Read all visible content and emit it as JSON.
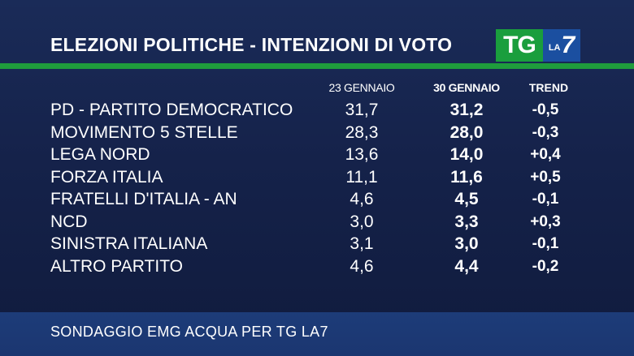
{
  "header": {
    "title": "ELEZIONI POLITICHE  -  INTENZIONI DI VOTO",
    "logo_tg": "TG",
    "logo_la": "LA",
    "logo_seven": "7"
  },
  "colors": {
    "background": "#15224a",
    "green_accent": "#1f9c3c",
    "footer_band": "#1d3c79",
    "logo_blue": "#1b4fa0"
  },
  "chart_data": {
    "type": "table",
    "columns": [
      "23 GENNAIO",
      "30 GENNAIO",
      "TREND"
    ],
    "rows": [
      {
        "party": "PD - PARTITO DEMOCRATICO",
        "v1": "31,7",
        "v2": "31,2",
        "trend": "-0,5"
      },
      {
        "party": "MOVIMENTO 5 STELLE",
        "v1": "28,3",
        "v2": "28,0",
        "trend": "-0,3"
      },
      {
        "party": "LEGA NORD",
        "v1": "13,6",
        "v2": "14,0",
        "trend": "+0,4"
      },
      {
        "party": "FORZA ITALIA",
        "v1": "11,1",
        "v2": "11,6",
        "trend": "+0,5"
      },
      {
        "party": "FRATELLI D'ITALIA - AN",
        "v1": "4,6",
        "v2": "4,5",
        "trend": "-0,1"
      },
      {
        "party": "NCD",
        "v1": "3,0",
        "v2": "3,3",
        "trend": "+0,3"
      },
      {
        "party": "SINISTRA ITALIANA",
        "v1": "3,1",
        "v2": "3,0",
        "trend": "-0,1"
      },
      {
        "party": "ALTRO PARTITO",
        "v1": "4,6",
        "v2": "4,4",
        "trend": "-0,2"
      }
    ]
  },
  "footer": {
    "source": "SONDAGGIO EMG ACQUA PER TG LA7"
  }
}
